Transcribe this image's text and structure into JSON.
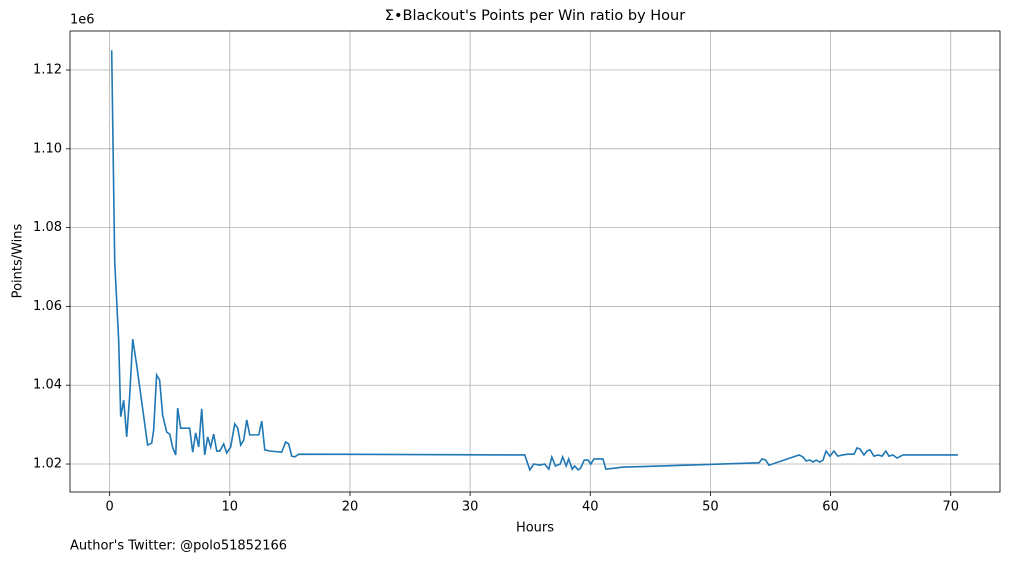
{
  "chart_data": {
    "type": "line",
    "title": "Σ•Blackout's Points per Win ratio by Hour",
    "xlabel": "Hours",
    "ylabel": "Points/Wins",
    "y_offset_label": "1e6",
    "annotation": "Author's Twitter: @polo51852166",
    "color": "#1f77b4",
    "grid": true,
    "xlim": [
      -3.3,
      74.1
    ],
    "xticks": [
      0,
      10,
      20,
      30,
      40,
      50,
      60,
      70
    ],
    "ylim": [
      1.0129,
      1.1299
    ],
    "yticks": [
      1.02,
      1.04,
      1.06,
      1.08,
      {
        "value": 1.1,
        "label": "1.10"
      },
      1.12
    ],
    "x": [
      0.17,
      0.42,
      0.75,
      0.92,
      1.17,
      1.42,
      1.67,
      1.92,
      2.25,
      3.16,
      3.5,
      3.66,
      3.91,
      4.16,
      4.41,
      4.75,
      5.0,
      5.25,
      5.5,
      5.66,
      5.91,
      6.66,
      6.91,
      7.16,
      7.41,
      7.66,
      7.91,
      8.16,
      8.41,
      8.66,
      8.91,
      9.16,
      9.49,
      9.74,
      10.07,
      10.41,
      10.66,
      10.91,
      11.16,
      11.41,
      11.66,
      12.41,
      12.66,
      12.91,
      13.32,
      14.32,
      14.65,
      14.9,
      15.15,
      15.4,
      15.74,
      34.55,
      34.97,
      35.3,
      35.8,
      36.2,
      36.55,
      36.8,
      37.1,
      37.5,
      37.7,
      38.0,
      38.2,
      38.5,
      38.7,
      39.0,
      39.2,
      39.5,
      39.8,
      40.05,
      40.3,
      41.05,
      41.3,
      42.2,
      42.63,
      54.04,
      54.3,
      54.6,
      54.87,
      57.37,
      57.7,
      57.95,
      58.3,
      58.53,
      58.8,
      59.1,
      59.37,
      59.62,
      59.95,
      60.28,
      60.6,
      61.0,
      61.45,
      61.95,
      62.2,
      62.45,
      62.78,
      63.03,
      63.28,
      63.61,
      63.95,
      64.28,
      64.6,
      64.86,
      65.2,
      65.53,
      66.03,
      70.6
    ],
    "values": [
      1.125,
      1.0713,
      1.0515,
      1.032,
      1.0362,
      1.0269,
      1.0375,
      1.0517,
      1.0451,
      1.0248,
      1.0253,
      1.0286,
      1.0426,
      1.0413,
      1.0324,
      1.0281,
      1.0276,
      1.0241,
      1.0223,
      1.0342,
      1.0291,
      1.0291,
      1.023,
      1.0279,
      1.0243,
      1.034,
      1.0223,
      1.0269,
      1.0243,
      1.0276,
      1.0233,
      1.0233,
      1.0251,
      1.0228,
      1.0243,
      1.0302,
      1.0291,
      1.0248,
      1.0261,
      1.0312,
      1.0274,
      1.0274,
      1.0309,
      1.0236,
      1.0233,
      1.023,
      1.0256,
      1.0251,
      1.022,
      1.0218,
      1.0225,
      1.0223,
      1.0185,
      1.02,
      1.0197,
      1.02,
      1.0187,
      1.0218,
      1.0195,
      1.02,
      1.0218,
      1.0195,
      1.0213,
      1.0187,
      1.0195,
      1.0185,
      1.019,
      1.021,
      1.021,
      1.02,
      1.0213,
      1.0213,
      1.0187,
      1.019,
      1.0192,
      1.0203,
      1.0213,
      1.021,
      1.0197,
      1.0223,
      1.0218,
      1.0208,
      1.021,
      1.0205,
      1.021,
      1.0205,
      1.021,
      1.0233,
      1.022,
      1.0233,
      1.022,
      1.0223,
      1.0225,
      1.0225,
      1.0241,
      1.0238,
      1.0223,
      1.0233,
      1.0236,
      1.022,
      1.0223,
      1.022,
      1.0233,
      1.022,
      1.0223,
      1.0215,
      1.0223,
      1.0223
    ]
  }
}
